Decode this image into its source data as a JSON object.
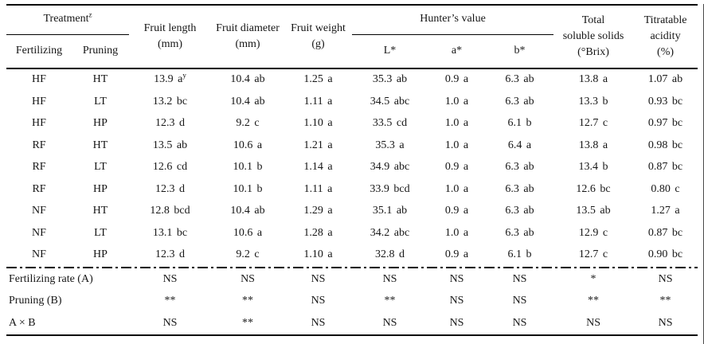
{
  "page": {
    "background": "#ffffff",
    "text_color": "#161616",
    "rule_color": "#000000"
  },
  "table": {
    "header": {
      "treatment": {
        "label": "Treatment",
        "sup": "z"
      },
      "fertilizing": "Fertilizing",
      "pruning": "Pruning",
      "fruit_length": {
        "line1": "Fruit length",
        "line2": "(mm)"
      },
      "fruit_diameter": {
        "line1": "Fruit diameter",
        "line2": "(mm)"
      },
      "fruit_weight": {
        "line1": "Fruit weight",
        "line2": "(g)"
      },
      "hunters_value": "Hunter’s value",
      "l_star": "L*",
      "a_star": "a*",
      "b_star": "b*",
      "total_soluble_solids": {
        "line1": "Total",
        "line2": "soluble solids",
        "line3": "(°Brix)"
      },
      "titratable_acidity": {
        "line1": "Titratable",
        "line2": "acidity",
        "line3": "(%)"
      }
    },
    "rows": [
      {
        "cells": [
          "HF",
          "HT",
          "13.9 a",
          "10.4 ab",
          "1.25 a",
          "35.3 ab",
          "0.9 a",
          "6.3 ab",
          "13.8 a",
          "1.07 ab"
        ],
        "sups": {
          "2": "y"
        }
      },
      {
        "cells": [
          "HF",
          "LT",
          "13.2 bc",
          "10.4 ab",
          "1.11 a",
          "34.5 abc",
          "1.0 a",
          "6.3 ab",
          "13.3 b",
          "0.93 bc"
        ]
      },
      {
        "cells": [
          "HF",
          "HP",
          "12.3 d",
          "9.2 c",
          "1.10 a",
          "33.5 cd",
          "1.0 a",
          "6.1 b",
          "12.7 c",
          "0.97 bc"
        ]
      },
      {
        "cells": [
          "RF",
          "HT",
          "13.5 ab",
          "10.6 a",
          "1.21 a",
          "35.3 a",
          "1.0 a",
          "6.4 a",
          "13.8 a",
          "0.98 bc"
        ]
      },
      {
        "cells": [
          "RF",
          "LT",
          "12.6 cd",
          "10.1 b",
          "1.14 a",
          "34.9 abc",
          "0.9 a",
          "6.3 ab",
          "13.4 b",
          "0.87 bc"
        ]
      },
      {
        "cells": [
          "RF",
          "HP",
          "12.3 d",
          "10.1 b",
          "1.11 a",
          "33.9 bcd",
          "1.0 a",
          "6.3 ab",
          "12.6 bc",
          "0.80 c"
        ]
      },
      {
        "cells": [
          "NF",
          "HT",
          "12.8 bcd",
          "10.4 ab",
          "1.29 a",
          "35.1 ab",
          "0.9 a",
          "6.3 ab",
          "13.5 ab",
          "1.27 a"
        ]
      },
      {
        "cells": [
          "NF",
          "LT",
          "13.1 bc",
          "10.6 a",
          "1.28 a",
          "34.2 abc",
          "1.0 a",
          "6.3 ab",
          "12.9 c",
          "0.87 bc"
        ]
      },
      {
        "cells": [
          "NF",
          "HP",
          "12.3 d",
          "9.2 c",
          "1.10 a",
          "32.8 d",
          "0.9 a",
          "6.1 b",
          "12.7 c",
          "0.90 bc"
        ]
      }
    ],
    "significance": [
      {
        "label": "Fertilizing rate (A)",
        "values": [
          "NS",
          "NS",
          "NS",
          "NS",
          "NS",
          "NS",
          "*",
          "NS"
        ]
      },
      {
        "label": "Pruning (B)",
        "values": [
          "**",
          "**",
          "NS",
          "**",
          "NS",
          "NS",
          "**",
          "**"
        ]
      },
      {
        "label": "A × B",
        "values": [
          "NS",
          "**",
          "NS",
          "NS",
          "NS",
          "NS",
          "NS",
          "NS"
        ]
      }
    ]
  }
}
